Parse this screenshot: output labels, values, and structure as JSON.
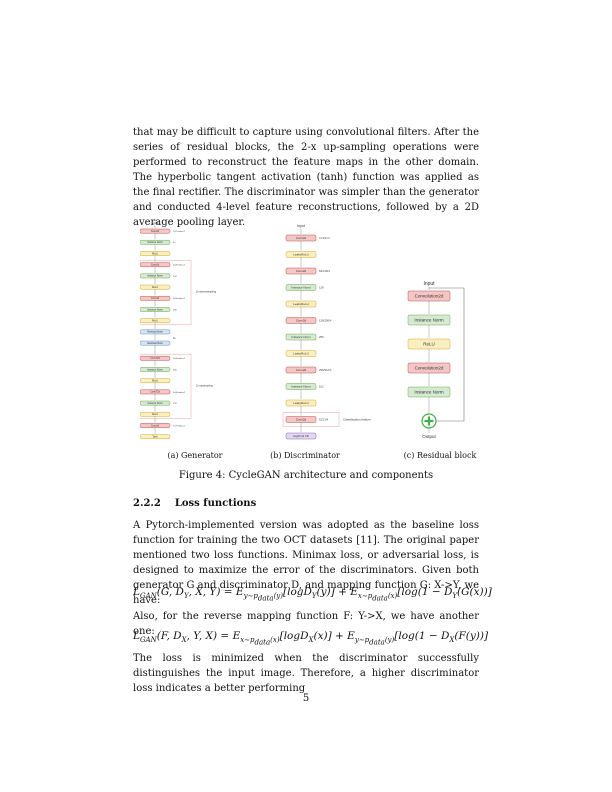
{
  "paragraph1": "that may be difficult to capture using convolutional filters. After the series of residual blocks, the 2-x up-sampling operations were performed to reconstruct the feature maps in the other domain. The hyperbolic tangent activation (tanh) function was applied as the final rectifier. The discriminator was simpler than the generator and conducted 4-level feature reconstructions, followed by a 2D average pooling layer.",
  "figure": {
    "generator": {
      "input": "Input",
      "blocks": [
        {
          "label": "Conv2d",
          "kind": "conv",
          "note": "7x7/stride=1"
        },
        {
          "label": "Instance Norm",
          "kind": "norm",
          "note": "64"
        },
        {
          "label": "ReLU",
          "kind": "relu",
          "note": ""
        },
        {
          "label": "Conv2d",
          "kind": "conv",
          "note": "3x3/stride=2"
        },
        {
          "label": "Instance Norm",
          "kind": "norm",
          "note": "128"
        },
        {
          "label": "ReLU",
          "kind": "relu",
          "note": ""
        },
        {
          "label": "Conv2d",
          "kind": "conv",
          "note": "3x3/stride=2"
        },
        {
          "label": "Instance Norm",
          "kind": "norm",
          "note": "256"
        },
        {
          "label": "ReLU",
          "kind": "relu",
          "note": ""
        },
        {
          "label": "Residual block",
          "kind": "res",
          "note": ""
        },
        {
          "label": "Residual block",
          "kind": "res",
          "note": ""
        },
        {
          "label": "ConvT2d",
          "kind": "conv",
          "note": "3x3/stride=2"
        },
        {
          "label": "Instance Norm",
          "kind": "norm",
          "note": "256"
        },
        {
          "label": "ReLU",
          "kind": "relu",
          "note": ""
        },
        {
          "label": "ConvT2d",
          "kind": "conv",
          "note": "3x3/stride=2"
        },
        {
          "label": "Instance Norm",
          "kind": "norm",
          "note": "128"
        },
        {
          "label": "ReLU",
          "kind": "relu",
          "note": ""
        },
        {
          "label": "Conv2d",
          "kind": "conv",
          "note": "7x7/stride=1"
        },
        {
          "label": "Tanh",
          "kind": "relu",
          "note": ""
        }
      ],
      "dots": "9x",
      "downsampling": "2x downsampling",
      "upsampling": "2x upsampling"
    },
    "discriminator": {
      "input": "Input",
      "blocks": [
        {
          "label": "Conv2d",
          "kind": "conv",
          "note": "C=3/k=4"
        },
        {
          "label": "LeakyReLU",
          "kind": "relu",
          "note": ""
        },
        {
          "label": "Conv2d",
          "kind": "conv",
          "note": "64/128/4"
        },
        {
          "label": "Instance Norm",
          "kind": "norm",
          "note": "128"
        },
        {
          "label": "LeakyReLU",
          "kind": "relu",
          "note": ""
        },
        {
          "label": "Conv2d",
          "kind": "conv",
          "note": "128/256/4"
        },
        {
          "label": "Instance Norm",
          "kind": "norm",
          "note": "256"
        },
        {
          "label": "LeakyReLU",
          "kind": "relu",
          "note": ""
        },
        {
          "label": "Conv2d",
          "kind": "conv",
          "note": "256/512/4"
        },
        {
          "label": "Instance Norm",
          "kind": "norm",
          "note": "512"
        },
        {
          "label": "LeakyReLU",
          "kind": "relu",
          "note": ""
        },
        {
          "label": "Conv2d",
          "kind": "conv",
          "note": "512/1/4"
        },
        {
          "label": "AvgPool 2D",
          "kind": "pool",
          "note": ""
        }
      ],
      "classification": "Classification feature"
    },
    "residual": {
      "input": "Input",
      "blocks": [
        {
          "label": "Convolution2d",
          "kind": "conv"
        },
        {
          "label": "Instance Norm",
          "kind": "norm"
        },
        {
          "label": "ReLU",
          "kind": "relu"
        },
        {
          "label": "Convolution2d",
          "kind": "conv"
        },
        {
          "label": "Instance Norm",
          "kind": "norm"
        }
      ],
      "output": "Output"
    },
    "colors": {
      "conv_fill": "#f4c7c6",
      "conv_stroke": "#c0504d",
      "norm_fill": "#d5ead0",
      "norm_stroke": "#6aa84f",
      "relu_fill": "#fbeec1",
      "relu_stroke": "#d6a92b",
      "res_fill": "#d4e3f5",
      "res_stroke": "#6d8fc4",
      "pool_fill": "#e4d7f0",
      "pool_stroke": "#8e6bb5",
      "plus": "#3cb043"
    }
  },
  "captions": {
    "a": "(a) Generator",
    "b": "(b) Discriminator",
    "c": "(c) Residual block",
    "figure": "Figure 4: CycleGAN architecture and components"
  },
  "section": {
    "number": "2.2.2",
    "title": "Loss functions"
  },
  "paragraph2": "A Pytorch-implemented version was adopted as the baseline loss function for training the two OCT datasets [11]. The original paper mentioned two loss functions. Minimax loss, or adversarial loss, is designed to maximize the error of the discriminators. Given both generator G and discriminator D, and mapping function G: X->Y, we have:",
  "paragraph3": "Also, for the reverse mapping function F: Y->X, we have another one:",
  "paragraph4": "The loss is minimized when the discriminator successfully distinguishes the input image. Therefore, a higher discriminator loss indicates a better performing",
  "page_number": "5"
}
